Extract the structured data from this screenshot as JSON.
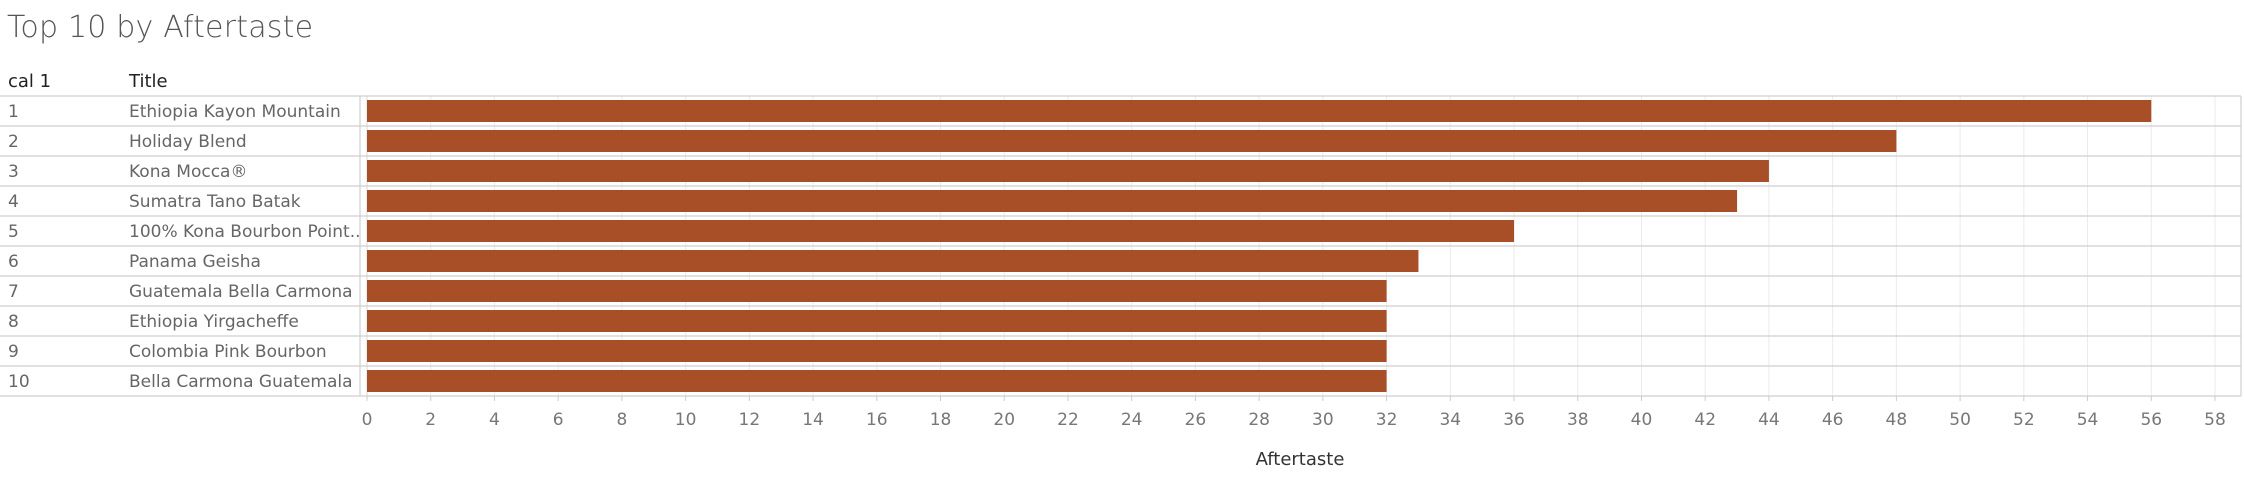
{
  "title": "Top 10 by Aftertaste",
  "columns": {
    "rank": "cal 1",
    "title": "Title"
  },
  "colors": {
    "bar": "#a84f28",
    "grid": "#ebebeb",
    "border": "#cfcfcf",
    "label": "#666666"
  },
  "chart_data": {
    "type": "bar",
    "orientation": "horizontal",
    "title": "Top 10 by Aftertaste",
    "xlabel": "Aftertaste",
    "ylabel": "",
    "ranks": [
      "1",
      "2",
      "3",
      "4",
      "5",
      "6",
      "7",
      "8",
      "9",
      "10"
    ],
    "categories": [
      "Ethiopia Kayon Mountain",
      "Holiday Blend",
      "Kona Mocca®",
      "Sumatra Tano Batak",
      "100% Kona Bourbon Point..",
      "Panama Geisha",
      "Guatemala Bella Carmona",
      "Ethiopia Yirgacheffe",
      "Colombia Pink Bourbon",
      "Bella Carmona Guatemala"
    ],
    "values": [
      56,
      48,
      44,
      43,
      36,
      33,
      32,
      32,
      32,
      32
    ],
    "xlim": [
      0,
      58
    ],
    "xticks": [
      0,
      2,
      4,
      6,
      8,
      10,
      12,
      14,
      16,
      18,
      20,
      22,
      24,
      26,
      28,
      30,
      32,
      34,
      36,
      38,
      40,
      42,
      44,
      46,
      48,
      50,
      52,
      54,
      56,
      58
    ],
    "grid": true
  }
}
